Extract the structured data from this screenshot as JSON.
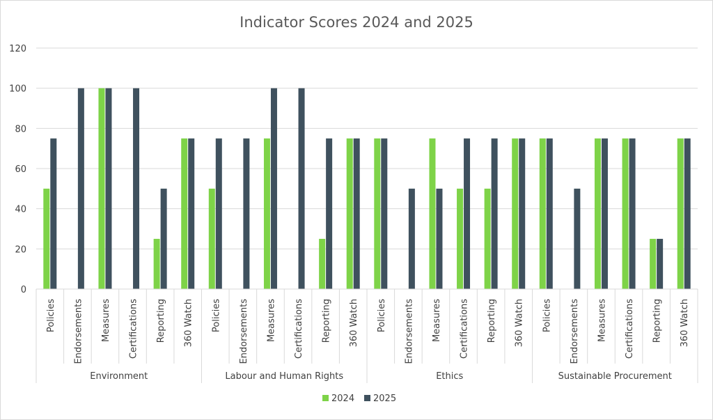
{
  "chart_data": {
    "type": "bar",
    "title": "Indicator Scores 2024 and 2025",
    "xlabel": "",
    "ylabel": "",
    "ylim": [
      0,
      120
    ],
    "yticks": [
      0,
      20,
      40,
      60,
      80,
      100,
      120
    ],
    "grid": true,
    "legend_position": "bottom",
    "groups": [
      {
        "name": "Environment",
        "categories": [
          "Policies",
          "Endorsements",
          "Measures",
          "Certifications",
          "Reporting",
          "360 Watch"
        ]
      },
      {
        "name": "Labour and Human Rights",
        "categories": [
          "Policies",
          "Endorsements",
          "Measures",
          "Certifications",
          "Reporting",
          "360 Watch"
        ]
      },
      {
        "name": "Ethics",
        "categories": [
          "Policies",
          "Endorsements",
          "Measures",
          "Certifications",
          "Reporting",
          "360 Watch"
        ]
      },
      {
        "name": "Sustainable Procurement",
        "categories": [
          "Policies",
          "Endorsements",
          "Measures",
          "Certifications",
          "Reporting",
          "360 Watch"
        ]
      }
    ],
    "series": [
      {
        "name": "2024",
        "color": "#7ed348",
        "values": [
          50,
          0,
          100,
          0,
          25,
          75,
          50,
          0,
          75,
          0,
          25,
          75,
          75,
          0,
          75,
          50,
          50,
          75,
          75,
          0,
          75,
          75,
          25,
          75
        ]
      },
      {
        "name": "2025",
        "color": "#3f515e",
        "values": [
          75,
          100,
          100,
          100,
          50,
          75,
          75,
          75,
          100,
          100,
          75,
          75,
          75,
          50,
          50,
          75,
          75,
          75,
          75,
          50,
          75,
          75,
          25,
          75
        ]
      }
    ]
  }
}
